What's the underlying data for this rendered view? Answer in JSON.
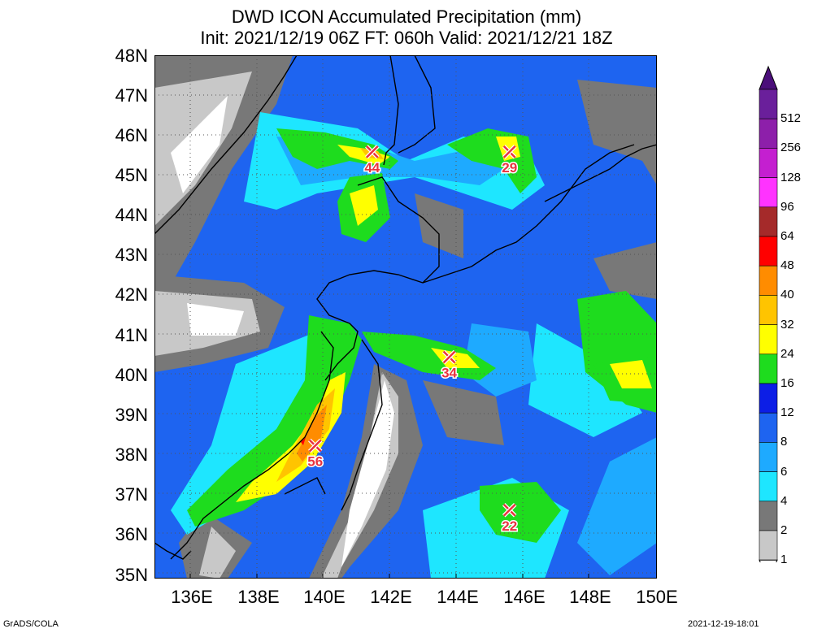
{
  "title_line1": "DWD ICON Accumulated Precipitation (mm)",
  "title_line2": "Init: 2021/12/19 06Z  FT: 060h  Valid: 2021/12/21 18Z",
  "lat_labels": [
    "48N",
    "47N",
    "46N",
    "45N",
    "44N",
    "43N",
    "42N",
    "41N",
    "40N",
    "39N",
    "38N",
    "37N",
    "36N",
    "35N"
  ],
  "lon_labels": [
    "136E",
    "138E",
    "140E",
    "142E",
    "144E",
    "146E",
    "148E",
    "150E"
  ],
  "colorbar": {
    "labels": [
      "512",
      "256",
      "128",
      "96",
      "64",
      "48",
      "40",
      "32",
      "24",
      "16",
      "12",
      "8",
      "6",
      "4",
      "2",
      "1"
    ],
    "colors": [
      "#6a1f9b",
      "#8d1faa",
      "#c41fd0",
      "#ff33ff",
      "#a52a2a",
      "#ff0000",
      "#ff8c00",
      "#ffc400",
      "#ffff00",
      "#1edc1e",
      "#0c1ee6",
      "#1e64f0",
      "#1eaaff",
      "#1ee6ff",
      "#787878",
      "#c8c8c8"
    ]
  },
  "markers": [
    {
      "label": "44",
      "lon": 141.5,
      "lat": 45.6
    },
    {
      "label": "29",
      "lon": 145.6,
      "lat": 45.6
    },
    {
      "label": "34",
      "lon": 143.8,
      "lat": 40.5
    },
    {
      "label": "56",
      "lon": 139.8,
      "lat": 38.3
    },
    {
      "label": "22",
      "lon": 145.6,
      "lat": 36.7
    }
  ],
  "footer_left": "GrADS/COLA",
  "footer_right": "2021-12-19-18:01"
}
